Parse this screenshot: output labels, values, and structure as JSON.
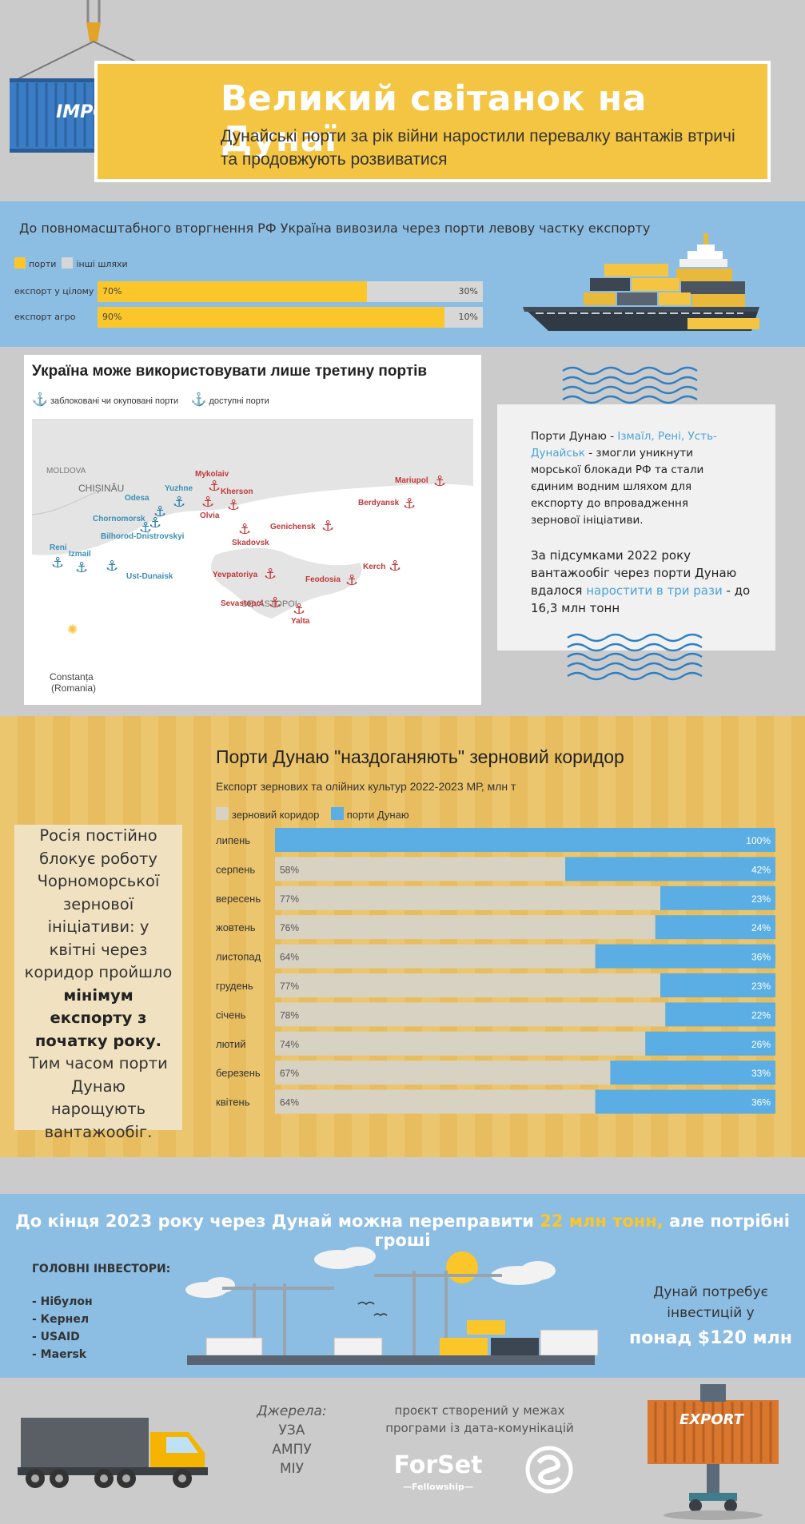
{
  "header": {
    "container_label": "IMPORT",
    "title": "Великий світанок на Дунаї",
    "subtitle": "Дунайські порти за рік війни наростили перевалку вантажів втричі та продовжують розвиватися"
  },
  "export_share": {
    "heading": "До повномасштабного вторгнення РФ Україна вивозила через порти левову частку експорту",
    "legend": [
      "порти",
      "інші шляхи"
    ],
    "colors": {
      "ports": "#fbc62a",
      "other": "#d7d7d7"
    },
    "rows": [
      {
        "label": "експорт у цілому",
        "ports": 70,
        "other": 30,
        "ports_text": "70%",
        "other_text": "30%"
      },
      {
        "label": "експорт агро",
        "ports": 90,
        "other": 10,
        "ports_text": "90%",
        "other_text": "10%"
      }
    ]
  },
  "map": {
    "title": "Україна може використовувати лише третину портів",
    "legend_blocked": "заблоковані чи окуповані порти",
    "legend_available": "доступні порти",
    "countries": [
      "MOLDOVA",
      "CHIȘINĂU",
      "SEVASTOPOL"
    ],
    "blocked_ports": [
      "Mykolaiv",
      "Kherson",
      "Olvia",
      "Skadovsk",
      "Genichensk",
      "Mariupol",
      "Berdyansk",
      "Kerch",
      "Feodosia",
      "Yevpatoriya",
      "Sevastopol",
      "Yalta"
    ],
    "available_ports": [
      "Odesa",
      "Yuzhne",
      "Chornomorsk",
      "Bilhorod-Dnistrovskyi",
      "Reni",
      "Izmail",
      "Ust-Dunaisk"
    ],
    "constanta_line1": "Constanța",
    "constanta_line2": "(Romania)"
  },
  "info": {
    "p1_prefix": "Порти Дунаю - ",
    "p1_ports": "Ізмаїл, Рені, Усть-Дунайськ",
    "p1_rest": " - змогли уникнути морської блокади РФ та стали єдиним водним шляхом для експорту до впровадження зернової ініціативи.",
    "p2_prefix": "За підсумками 2022 року вантажообіг через порти Дунаю вдалося ",
    "p2_highlight": "наростити в три рази",
    "p2_rest": " - до 16,3 млн тонн"
  },
  "corridor": {
    "side_text_1": "Росія постійно блокує роботу Чорноморської зернової ініціативи: у квітні через коридор пройшло ",
    "side_text_bold": "мінімум експорту з початку року.",
    "side_text_2": " Тим часом порти Дунаю нарощують вантажообіг."
  },
  "chart_data": {
    "type": "bar",
    "title": "Порти Дунаю \"наздоганяють\" зерновий коридор",
    "subtitle": "Експорт зернових та олійних культур 2022-2023 МР, млн т",
    "legend": [
      "зерновий коридор",
      "порти Дунаю"
    ],
    "colors": {
      "corridor": "#d8d2c3",
      "danube": "#5aaee3"
    },
    "categories": [
      "липень",
      "серпень",
      "вересень",
      "жовтень",
      "листопад",
      "грудень",
      "січень",
      "лютий",
      "березень",
      "квітень"
    ],
    "series": [
      {
        "name": "зерновий коридор",
        "values": [
          0,
          58,
          77,
          76,
          64,
          77,
          78,
          74,
          67,
          64
        ]
      },
      {
        "name": "порти Дунаю",
        "values": [
          100,
          42,
          23,
          24,
          36,
          23,
          22,
          26,
          33,
          36
        ]
      }
    ],
    "unit": "%"
  },
  "investment": {
    "heading_prefix": "До кінця 2023 року через Дунай можна переправити ",
    "heading_highlight": "22 млн тонн,",
    "heading_suffix": " але потрібні гроші",
    "investors_label": "ГОЛОВНІ ІНВЕСТОРИ:",
    "investors": [
      "- Нібулон",
      "- Кернел",
      "- USAID",
      "- Maersk"
    ],
    "need_text": "Дунай потребує інвестицій у",
    "need_amount": "понад $120 млн"
  },
  "footer": {
    "sources_title": "Джерела:",
    "sources": [
      "УЗА",
      "АМПУ",
      "МІУ"
    ],
    "project_text": "проєкт створений у межах програми із дата-комунікацій",
    "logo_main": "ForSet",
    "logo_sub": "—Fellowship—",
    "container_label": "EXPORT"
  }
}
